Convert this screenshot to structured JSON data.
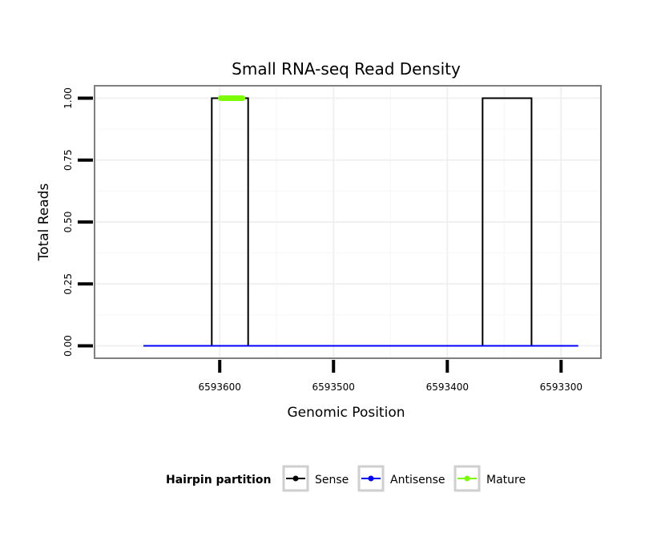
{
  "chart_data": {
    "type": "line",
    "title": "Small RNA-seq Read Density",
    "xlabel": "Genomic Position",
    "ylabel": "Total Reads",
    "x_reversed": true,
    "xlim": [
      6593710,
      6593265
    ],
    "ylim": [
      -0.05,
      1.05
    ],
    "x_ticks": [
      6593600,
      6593500,
      6593400,
      6593300
    ],
    "x_tick_labels": [
      "6593600",
      "6593500",
      "6593400",
      "6593300"
    ],
    "y_ticks": [
      0,
      0.25,
      0.5,
      0.75,
      1.0
    ],
    "y_tick_labels": [
      "0.00",
      "0.25",
      "0.50",
      "0.75",
      "1.00"
    ],
    "grid": true,
    "legend_position": "bottom",
    "legend_title": "Hairpin partition",
    "series": [
      {
        "name": "Sense",
        "color": "#000000",
        "x": [
          6593667,
          6593607,
          6593607,
          6593575,
          6593575,
          6593369,
          6593369,
          6593326,
          6593326,
          6593285
        ],
        "y": [
          0,
          0,
          1,
          1,
          0,
          0,
          1,
          1,
          0,
          0
        ]
      },
      {
        "name": "Antisense",
        "color": "#0000ff",
        "x": [
          6593667,
          6593285
        ],
        "y": [
          0,
          0
        ]
      },
      {
        "name": "Mature",
        "color": "#7cfc00",
        "x": [
          6593599,
          6593580
        ],
        "y": [
          1,
          1
        ]
      }
    ]
  }
}
